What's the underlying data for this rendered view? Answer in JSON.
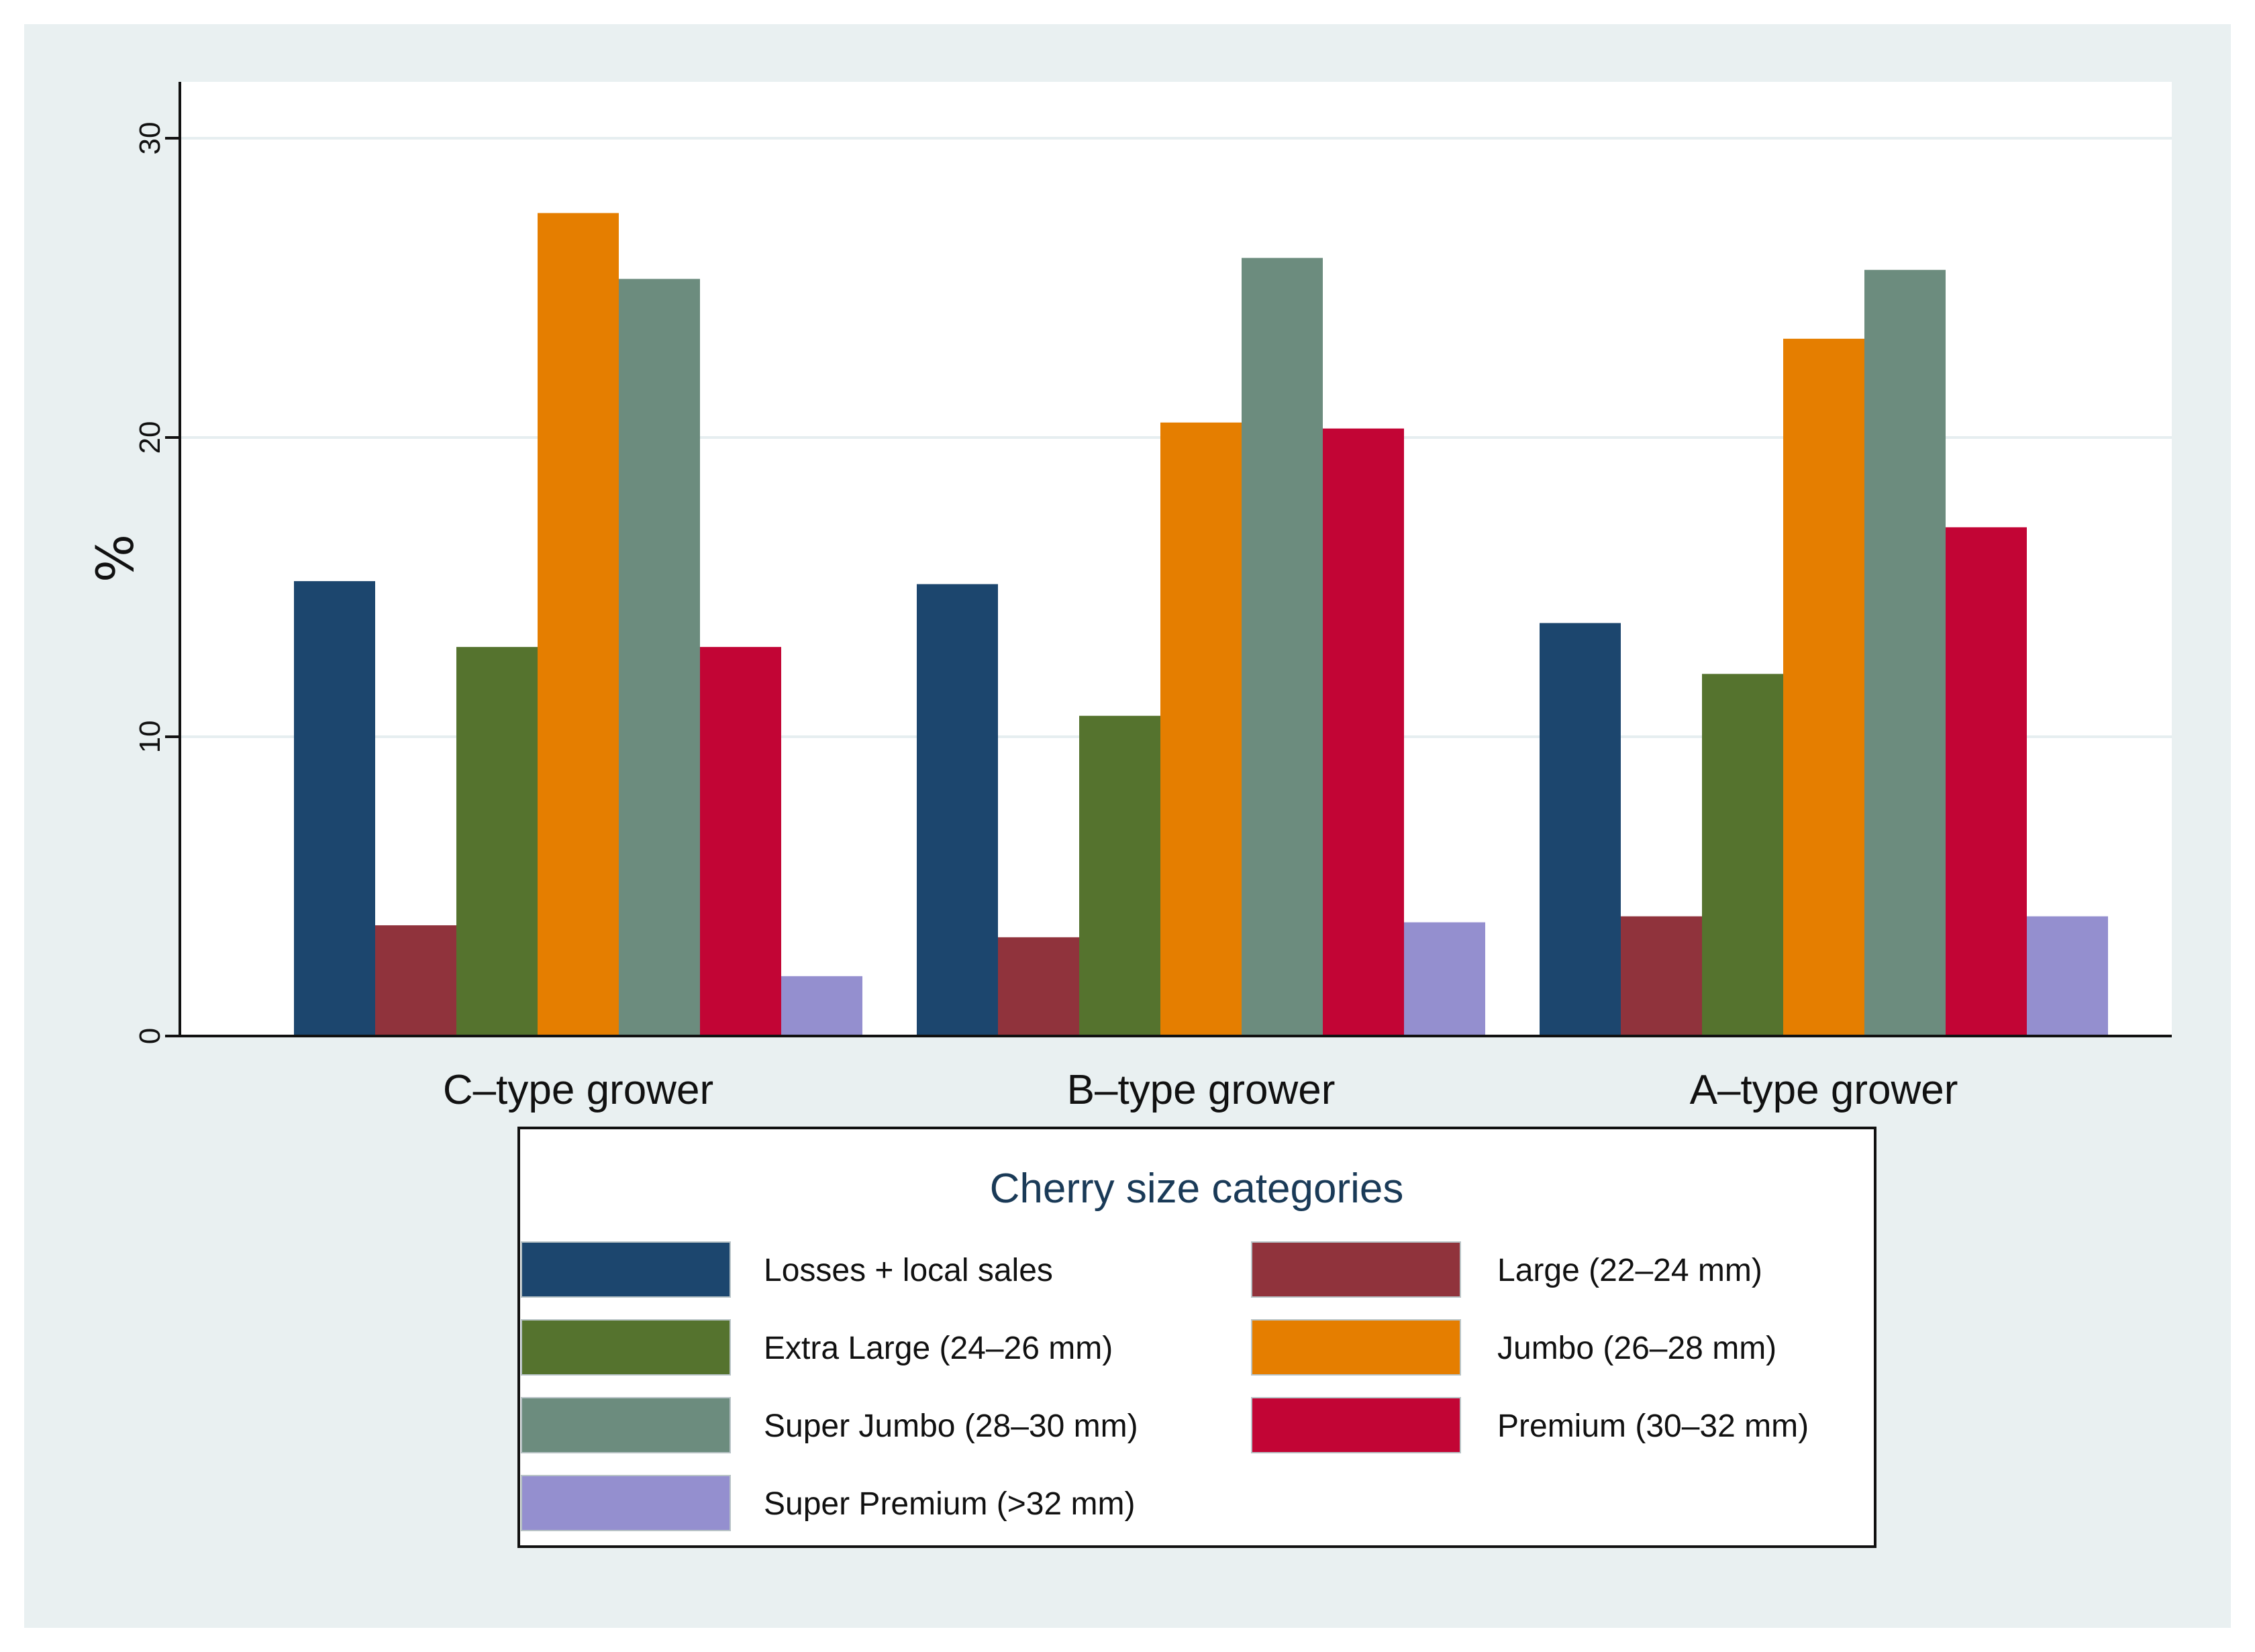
{
  "chart_data": {
    "type": "bar",
    "title": "",
    "xlabel": "",
    "ylabel": "%",
    "ylim": [
      0,
      32
    ],
    "yticks": [
      0,
      10,
      20,
      30
    ],
    "grid": true,
    "categories": [
      "C–type grower",
      "B–type grower",
      "A–type grower"
    ],
    "legend": {
      "title": "Cherry size categories",
      "placement": "bottom"
    },
    "series": [
      {
        "name": "Losses + local sales",
        "color": "#1c466e",
        "values": [
          15.2,
          15.1,
          13.8
        ]
      },
      {
        "name": "Large (22–24 mm)",
        "color": "#90333c",
        "values": [
          3.7,
          3.3,
          4.0
        ]
      },
      {
        "name": "Extra Large (24–26 mm)",
        "color": "#55732e",
        "values": [
          13.0,
          10.7,
          12.1
        ]
      },
      {
        "name": "Jumbo (26–28 mm)",
        "color": "#e57e00",
        "values": [
          27.5,
          20.5,
          23.3
        ]
      },
      {
        "name": "Super Jumbo (28–30 mm)",
        "color": "#6c8c7e",
        "values": [
          25.3,
          26.0,
          25.6
        ]
      },
      {
        "name": "Premium (30–32 mm)",
        "color": "#c20535",
        "values": [
          13.0,
          20.3,
          17.0
        ]
      },
      {
        "name": "Super Premium (>32 mm)",
        "color": "#948fcf",
        "values": [
          2.0,
          3.8,
          4.0
        ]
      }
    ]
  },
  "colors": {
    "outer_background": "#e9f0f1",
    "plot_background": "#ffffff",
    "gridline": "#e6eef0"
  }
}
